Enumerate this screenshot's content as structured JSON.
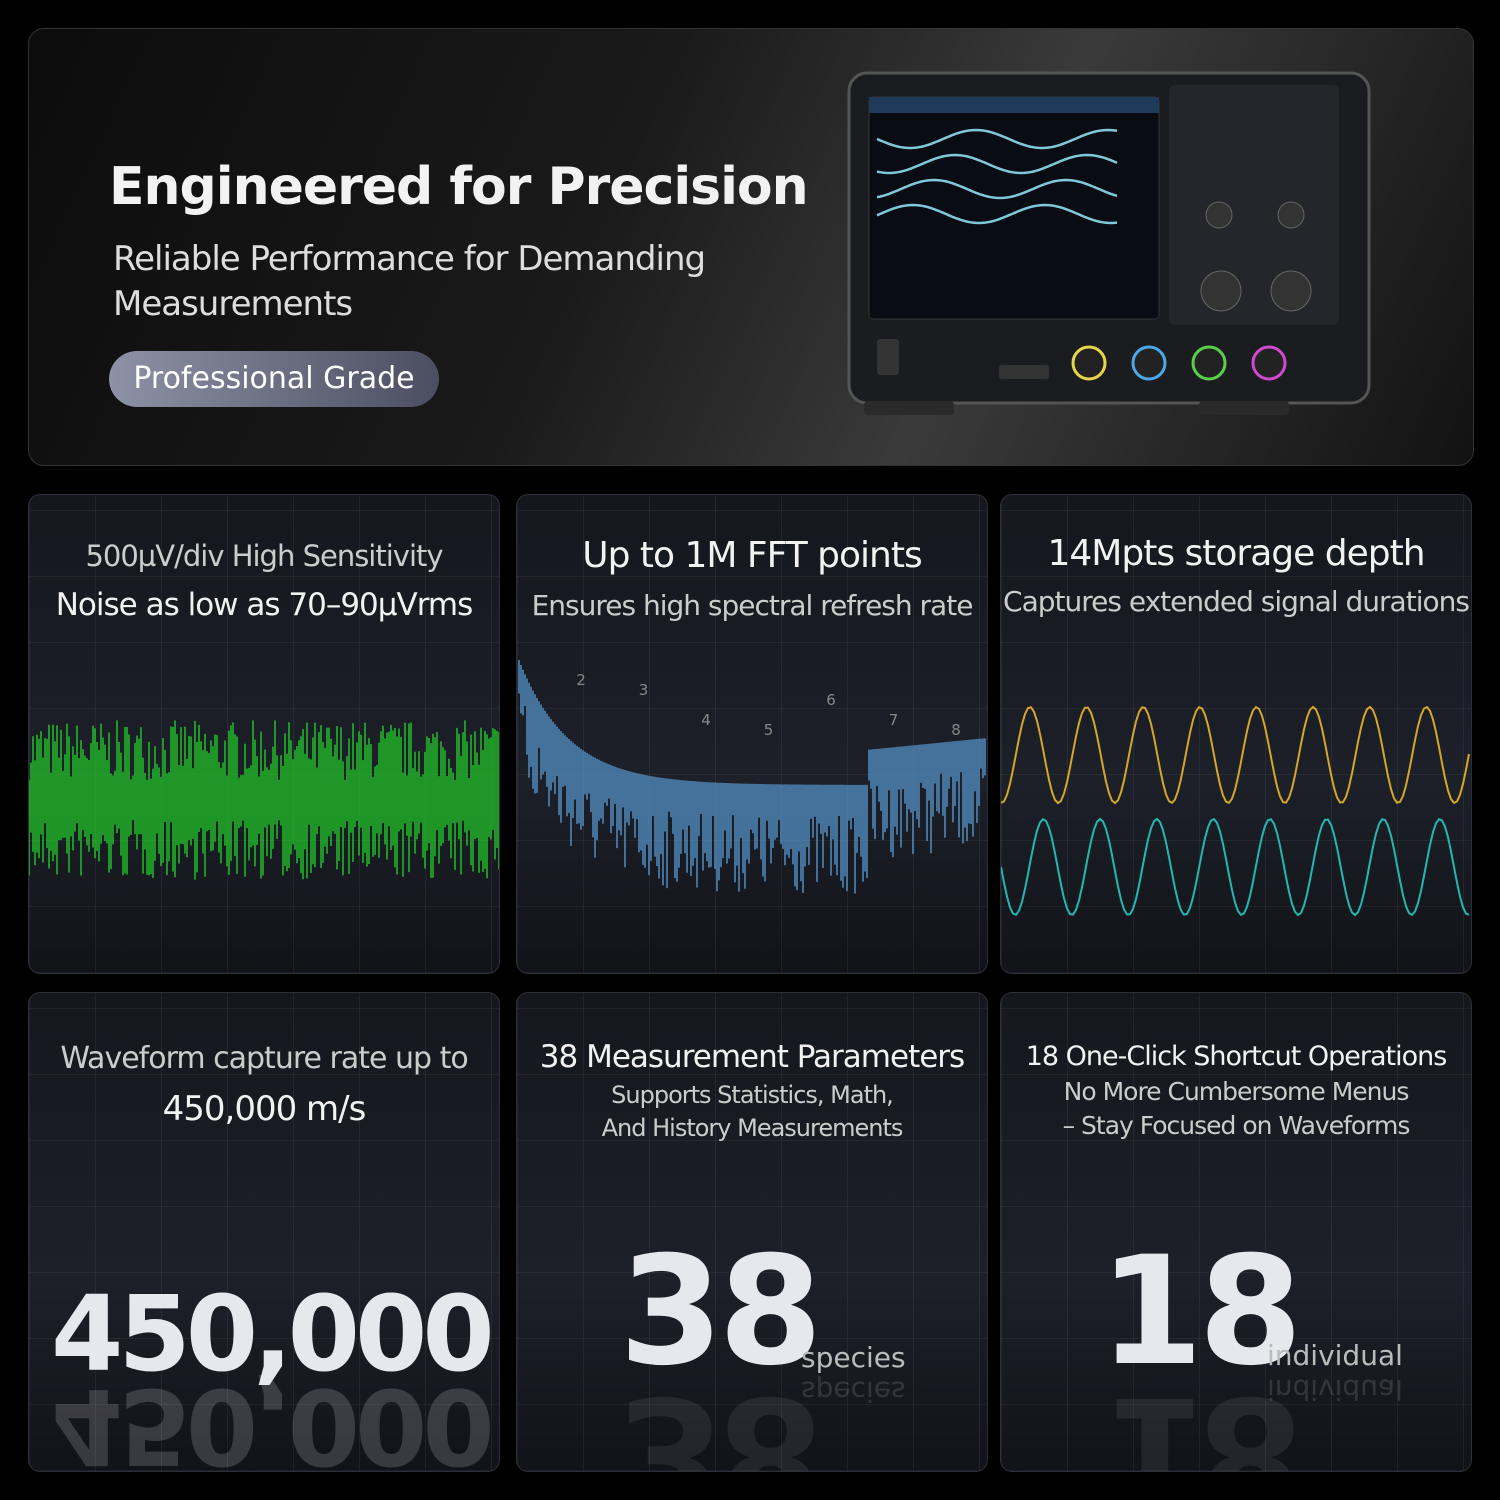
{
  "hero": {
    "title": "Engineered for Precision",
    "subtitle": "Reliable Performance for Demanding Measurements",
    "badge": "Professional Grade"
  },
  "cards": [
    {
      "line1": "500µV/div High Sensitivity",
      "line2": "Noise as low as 70–90µVrms"
    },
    {
      "title": "Up to 1M FFT points",
      "subtitle": "Ensures high spectral refresh rate",
      "harmonics": [
        2,
        3,
        4,
        5,
        6,
        7,
        8
      ]
    },
    {
      "title": "14Mpts storage depth",
      "subtitle": "Captures extended signal durations"
    },
    {
      "line1": "Waveform capture rate up to",
      "line2": "450,000 m/s",
      "big": "450,000"
    },
    {
      "title": "38 Measurement Parameters",
      "line1": "Supports Statistics, Math,",
      "line2": "And History Measurements",
      "big": "38",
      "unit": "species"
    },
    {
      "title": "18 One-Click Shortcut Operations",
      "line1": "No More Cumbersome Menus",
      "line2": "– Stay Focused on Waveforms",
      "big": "18",
      "unit": "individual"
    }
  ]
}
